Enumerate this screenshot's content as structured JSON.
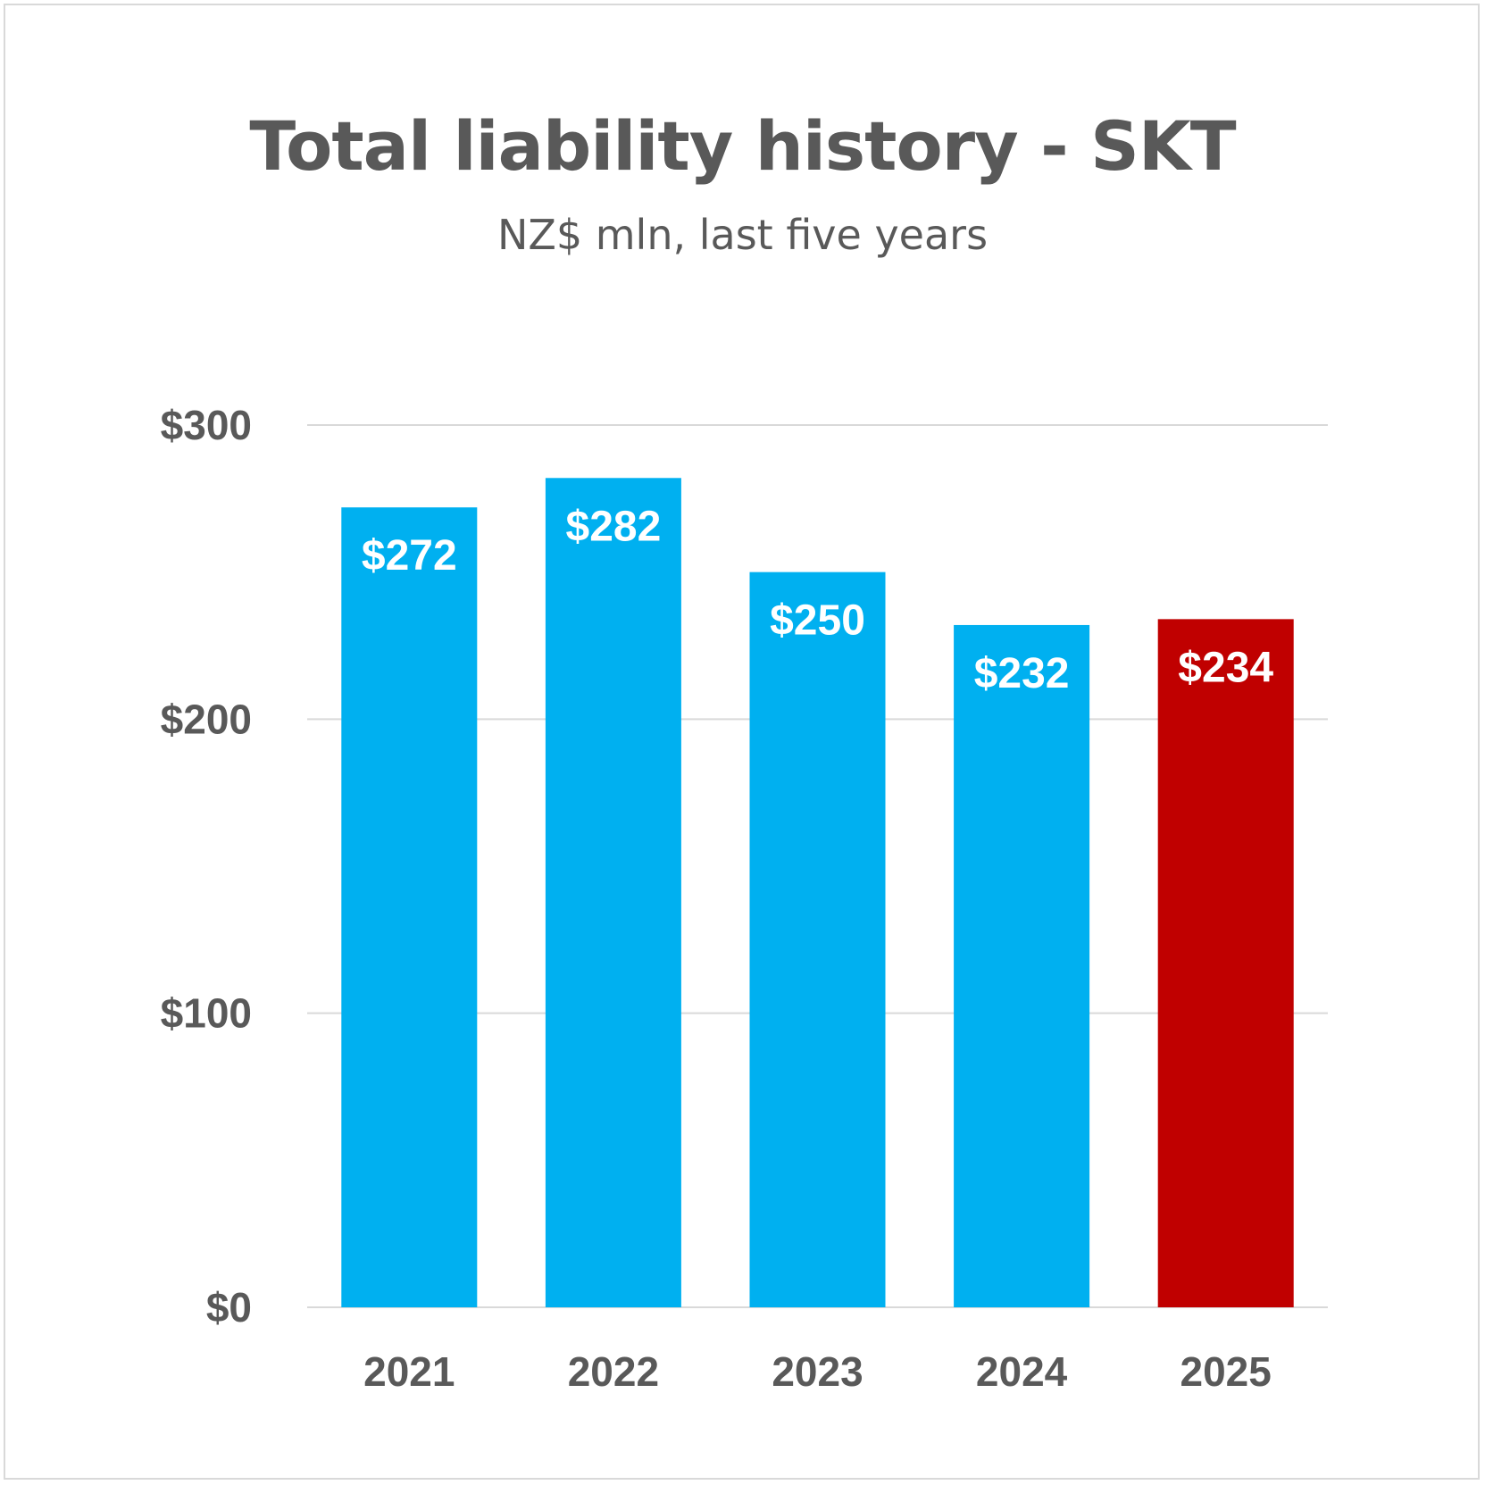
{
  "chart_data": {
    "type": "bar",
    "title": "Total liability history - SKT",
    "subtitle": "NZ$ mln, last five years",
    "categories": [
      "2021",
      "2022",
      "2023",
      "2024",
      "2025"
    ],
    "values": [
      272,
      282,
      250,
      232,
      234
    ],
    "value_labels": [
      "$272",
      "$282",
      "$250",
      "$232",
      "$234"
    ],
    "bar_colors": [
      "#00b0f0",
      "#00b0f0",
      "#00b0f0",
      "#00b0f0",
      "#c00000"
    ],
    "ylim": [
      0,
      300
    ],
    "y_ticks": [
      0,
      100,
      200,
      300
    ],
    "y_tick_labels": [
      "$0",
      "$100",
      "$200",
      "$300"
    ],
    "xlabel": "",
    "ylabel": "",
    "grid": true,
    "legend": "none",
    "colors": {
      "gridline": "#d9d9d9",
      "text": "#595959",
      "label": "#ffffff"
    }
  }
}
